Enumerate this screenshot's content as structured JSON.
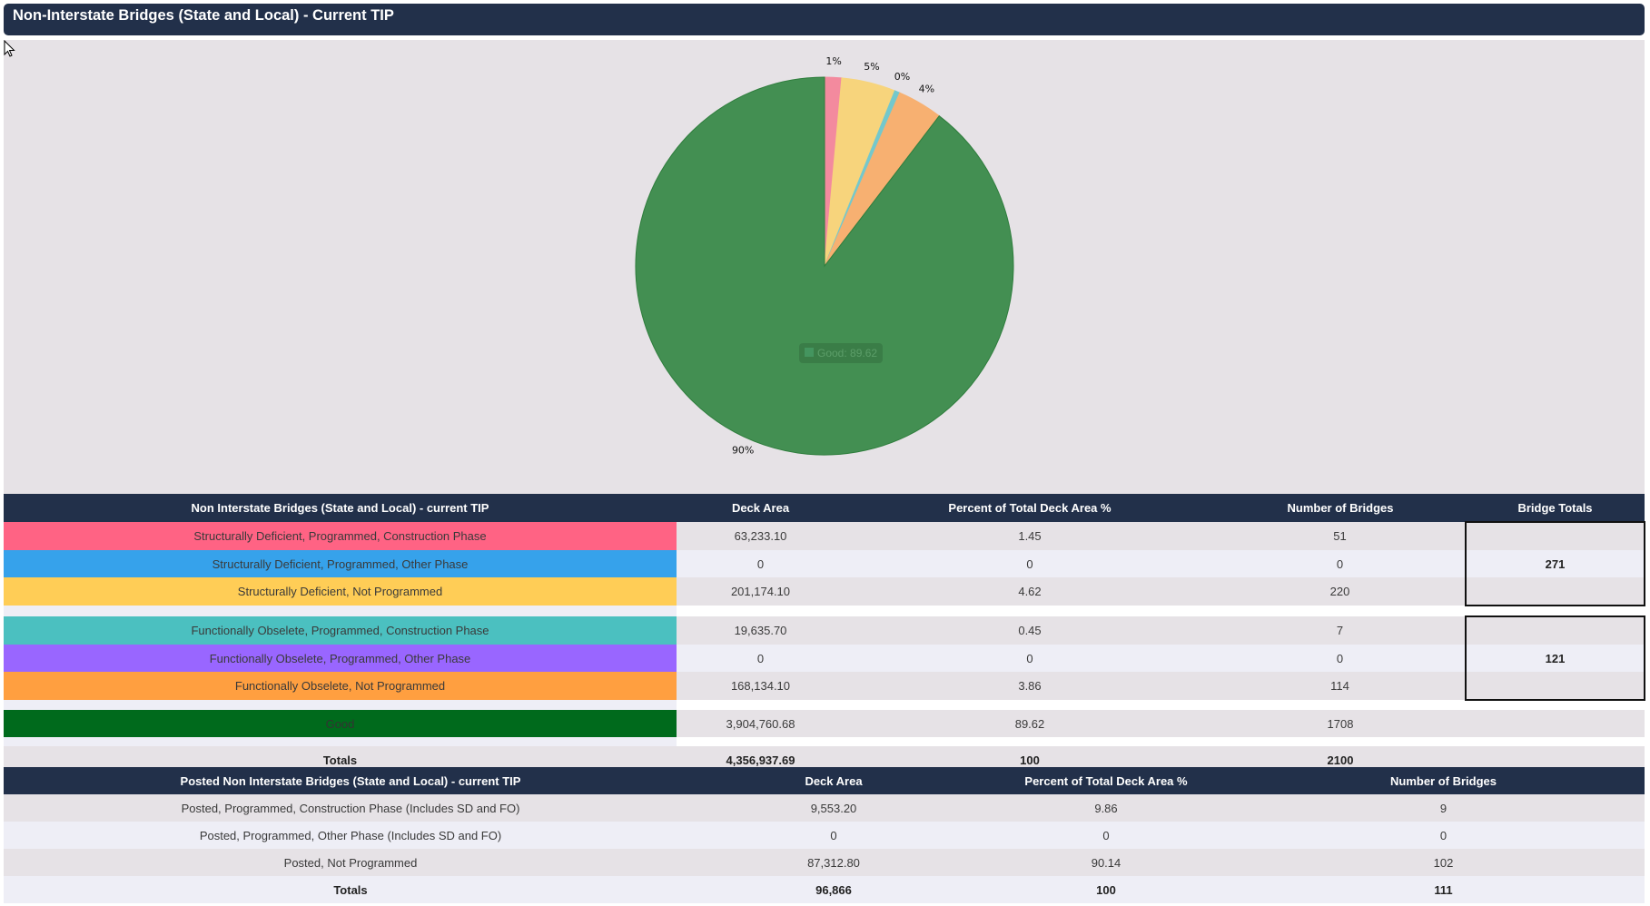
{
  "header": {
    "title": "Non-Interstate Bridges (State and Local) - Current TIP"
  },
  "colors": {
    "header_bg": "#22304a",
    "panel_bg": "#e6e2e6"
  },
  "chart_data": {
    "type": "pie",
    "title": "",
    "tooltip": "Good: 89.62",
    "slices": [
      {
        "name": "Structurally Deficient, Programmed, Construction Phase",
        "value": 1.45,
        "label": "1%",
        "color": "#f38a9e"
      },
      {
        "name": "Structurally Deficient, Programmed, Other Phase",
        "value": 0,
        "label": "",
        "color": "#5aa9e6"
      },
      {
        "name": "Structurally Deficient, Not Programmed",
        "value": 4.62,
        "label": "5%",
        "color": "#f7d47c"
      },
      {
        "name": "Functionally Obselete, Programmed, Construction Phase",
        "value": 0.45,
        "label": "0%",
        "color": "#74c8cc"
      },
      {
        "name": "Functionally Obselete, Programmed, Other Phase",
        "value": 0,
        "label": "",
        "color": "#a77ef5"
      },
      {
        "name": "Functionally Obselete, Not Programmed",
        "value": 3.86,
        "label": "4%",
        "color": "#f7b071"
      },
      {
        "name": "Good",
        "value": 89.62,
        "label": "90%",
        "color": "#438f52"
      }
    ]
  },
  "main_table": {
    "headers": [
      "Non Interstate Bridges (State and Local) - current TIP",
      "Deck Area",
      "Percent of Total Deck Area %",
      "Number of Bridges",
      "Bridge Totals"
    ],
    "groups": [
      {
        "rows": [
          {
            "label": "Structurally Deficient, Programmed, Construction Phase",
            "color": "#ff6384",
            "deck_area": "63,233.10",
            "percent": "1.45",
            "bridges": "51"
          },
          {
            "label": "Structurally Deficient, Programmed, Other Phase",
            "color": "#36a2eb",
            "deck_area": "0",
            "percent": "0",
            "bridges": "0"
          },
          {
            "label": "Structurally Deficient, Not Programmed",
            "color": "#ffcd56",
            "deck_area": "201,174.10",
            "percent": "4.62",
            "bridges": "220"
          }
        ],
        "bridge_total": "271"
      },
      {
        "rows": [
          {
            "label": "Functionally Obselete, Programmed, Construction Phase",
            "color": "#4bc0c0",
            "deck_area": "19,635.70",
            "percent": "0.45",
            "bridges": "7"
          },
          {
            "label": "Functionally Obselete, Programmed, Other Phase",
            "color": "#9966ff",
            "deck_area": "0",
            "percent": "0",
            "bridges": "0"
          },
          {
            "label": "Functionally Obselete, Not Programmed",
            "color": "#ff9f40",
            "deck_area": "168,134.10",
            "percent": "3.86",
            "bridges": "114"
          }
        ],
        "bridge_total": "121"
      }
    ],
    "good": {
      "label": "Good",
      "color": "#006a1c",
      "deck_area": "3,904,760.68",
      "percent": "89.62",
      "bridges": "1708"
    },
    "totals": {
      "label": "Totals",
      "deck_area": "4,356,937.69",
      "percent": "100",
      "bridges": "2100"
    }
  },
  "posted_table": {
    "headers": [
      "Posted Non Interstate Bridges (State and Local) - current TIP",
      "Deck Area",
      "Percent of Total Deck Area %",
      "Number of Bridges"
    ],
    "rows": [
      {
        "label": "Posted, Programmed, Construction Phase (Includes SD and FO)",
        "deck_area": "9,553.20",
        "percent": "9.86",
        "bridges": "9"
      },
      {
        "label": "Posted, Programmed, Other Phase (Includes SD and FO)",
        "deck_area": "0",
        "percent": "0",
        "bridges": "0"
      },
      {
        "label": "Posted, Not Programmed",
        "deck_area": "87,312.80",
        "percent": "90.14",
        "bridges": "102"
      }
    ],
    "totals": {
      "label": "Totals",
      "deck_area": "96,866",
      "percent": "100",
      "bridges": "111"
    }
  }
}
